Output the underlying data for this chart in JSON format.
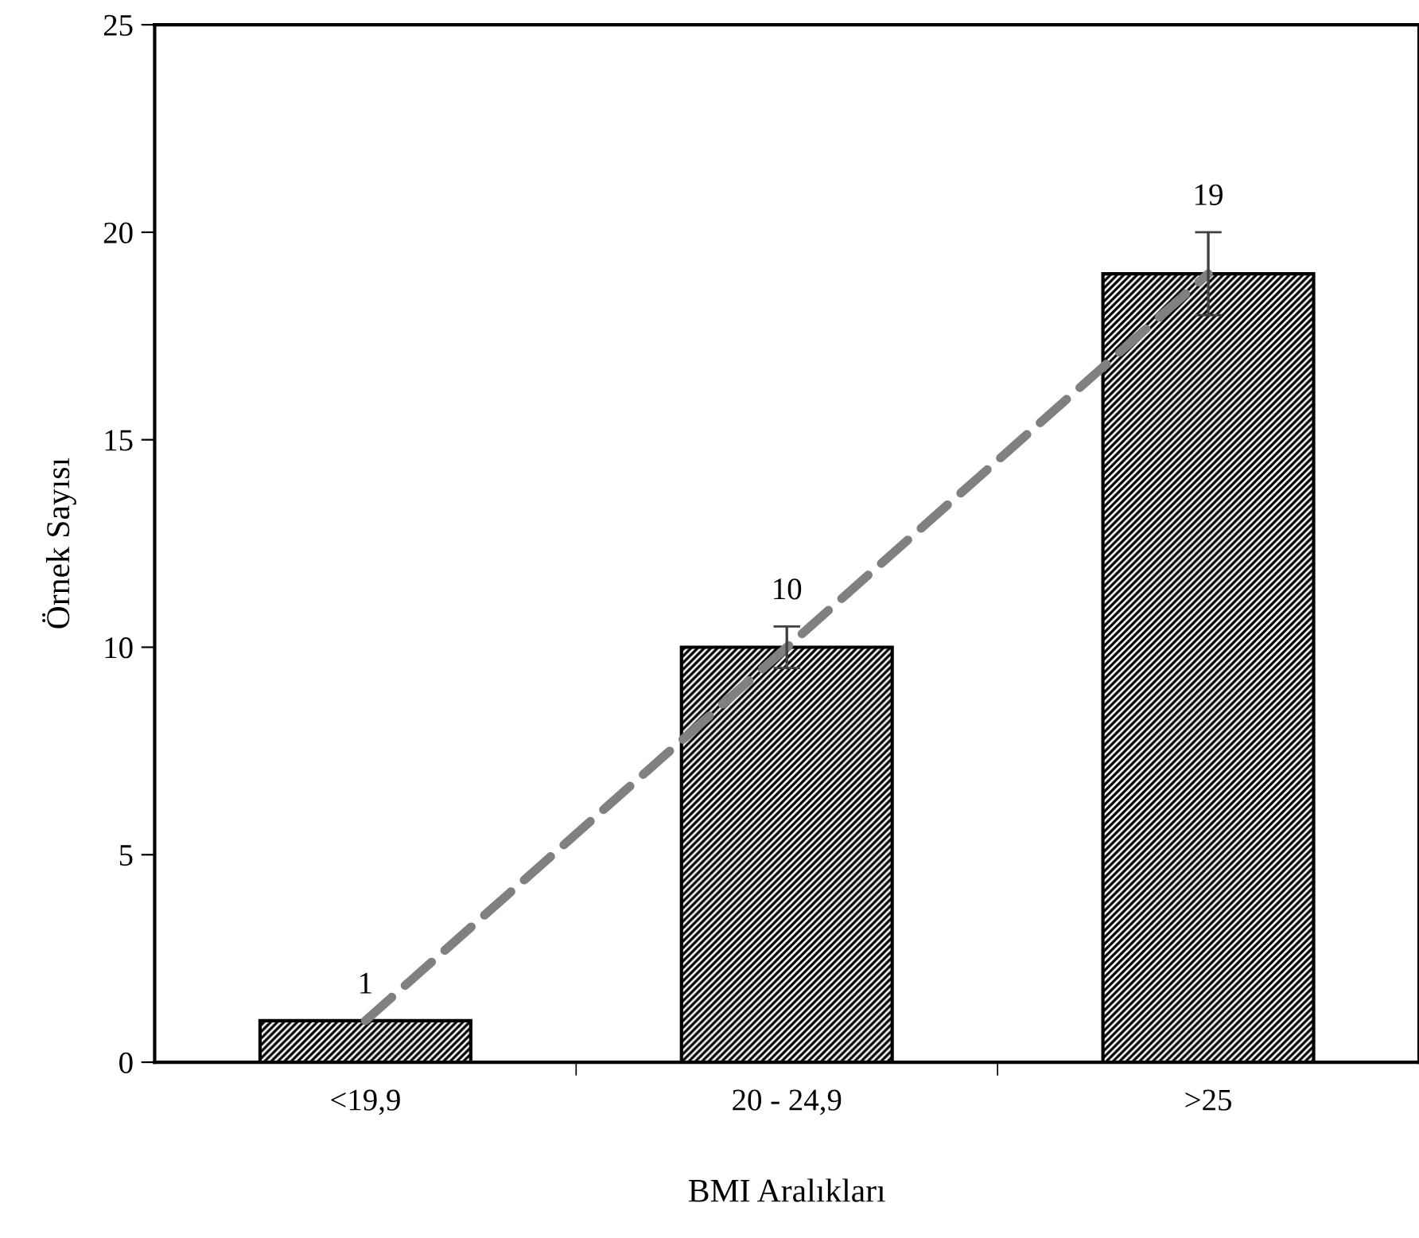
{
  "chart_data": {
    "type": "bar",
    "xlabel": "BMI Aralıkları",
    "ylabel": "Örnek Sayısı",
    "categories": [
      "<19,9",
      "20 - 24,9",
      ">25"
    ],
    "series": [
      {
        "color": "#000000",
        "values": [
          1,
          10,
          19
        ],
        "errors": [
          null,
          0.5,
          1
        ],
        "value_labels": [
          "1",
          "10",
          "19"
        ]
      },
      {
        "type": "line",
        "color": "#808080",
        "line_style": "dashed",
        "marker": "none",
        "values": [
          1,
          10,
          19
        ]
      }
    ],
    "ylim": [
      0,
      25
    ],
    "yticks": [
      0,
      5,
      10,
      15,
      20,
      25
    ],
    "grid": false
  }
}
